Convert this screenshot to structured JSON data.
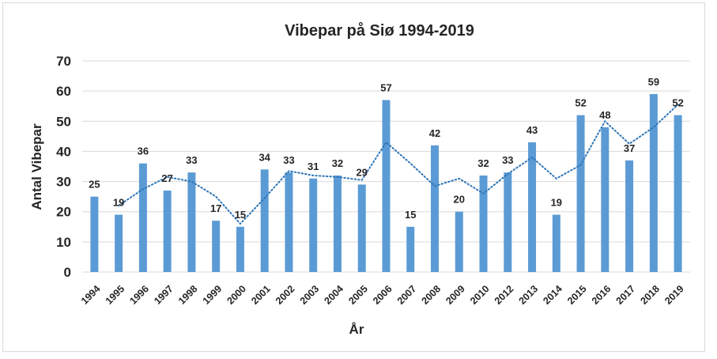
{
  "chart_data": {
    "type": "bar",
    "title": "Vibepar på Siø 1994-2019",
    "xlabel": "År",
    "ylabel": "Antal Vibepar",
    "ylim": [
      0,
      70
    ],
    "yticks": [
      "0",
      "10",
      "20",
      "30",
      "40",
      "50",
      "60",
      "70"
    ],
    "grid": true,
    "categories": [
      "1994",
      "1995",
      "1996",
      "1997",
      "1998",
      "1999",
      "2000",
      "2001",
      "2002",
      "2003",
      "2004",
      "2005",
      "2006",
      "2007",
      "2008",
      "2009",
      "2010",
      "2012",
      "2013",
      "2014",
      "2015",
      "2016",
      "2017",
      "2018",
      "2019"
    ],
    "series": [
      {
        "values": [
          25,
          19,
          36,
          27,
          33,
          17,
          15,
          34,
          33,
          31,
          32,
          29,
          57,
          15,
          42,
          20,
          32,
          33,
          43,
          19,
          52,
          48,
          37,
          59,
          52
        ]
      }
    ],
    "trendline": {
      "type": "moving-average",
      "period": 2,
      "style": "dotted"
    },
    "colors": {
      "bar": "#5b9bd5",
      "trend": "#2e75b6",
      "grid": "#d9d9d9",
      "text": "#262626"
    }
  }
}
